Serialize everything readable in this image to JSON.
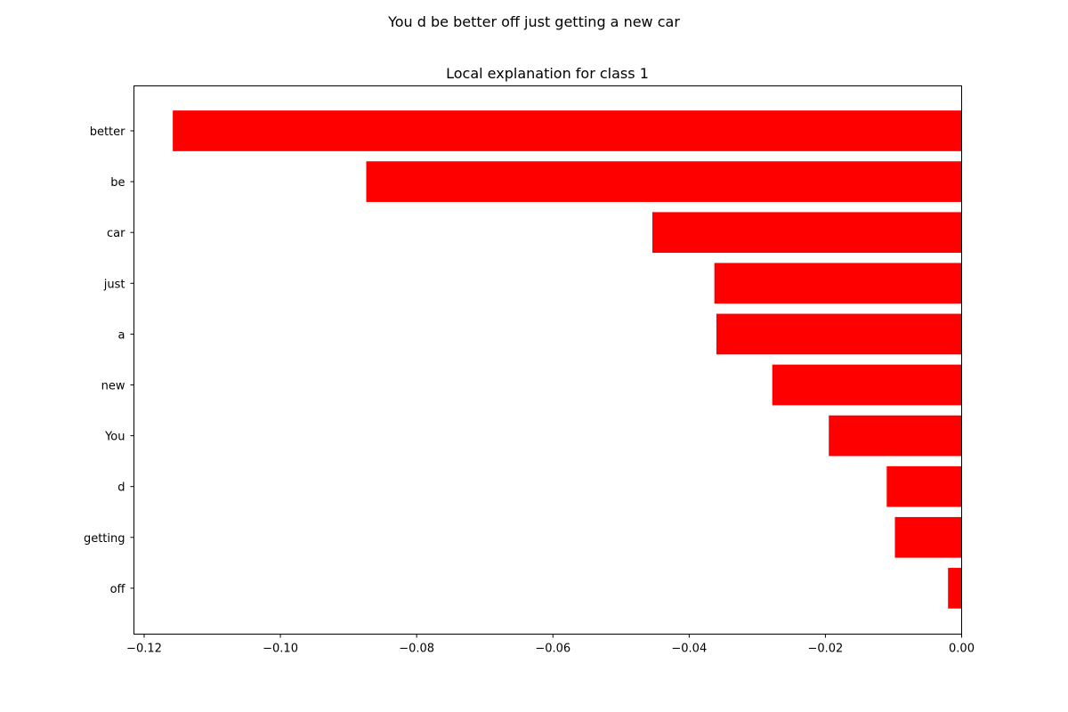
{
  "figure_title": "You d be better off just getting a new car",
  "chart_data": {
    "type": "bar",
    "orientation": "horizontal",
    "title": "Local explanation for class 1",
    "xlabel": "",
    "ylabel": "",
    "categories": [
      "better",
      "be",
      "car",
      "just",
      "a",
      "new",
      "You",
      "d",
      "getting",
      "off"
    ],
    "values": [
      -0.1158,
      -0.0874,
      -0.0454,
      -0.0363,
      -0.036,
      -0.0278,
      -0.0195,
      -0.011,
      -0.0098,
      -0.002
    ],
    "bar_color": "#ff0000",
    "xlim": [
      -0.1215,
      0.0
    ],
    "xticks": [
      -0.12,
      -0.1,
      -0.08,
      -0.06,
      -0.04,
      -0.02,
      0.0
    ],
    "xtick_labels": [
      "−0.12",
      "−0.10",
      "−0.08",
      "−0.06",
      "−0.04",
      "−0.02",
      "0.00"
    ],
    "grid": false,
    "legend": "none"
  }
}
